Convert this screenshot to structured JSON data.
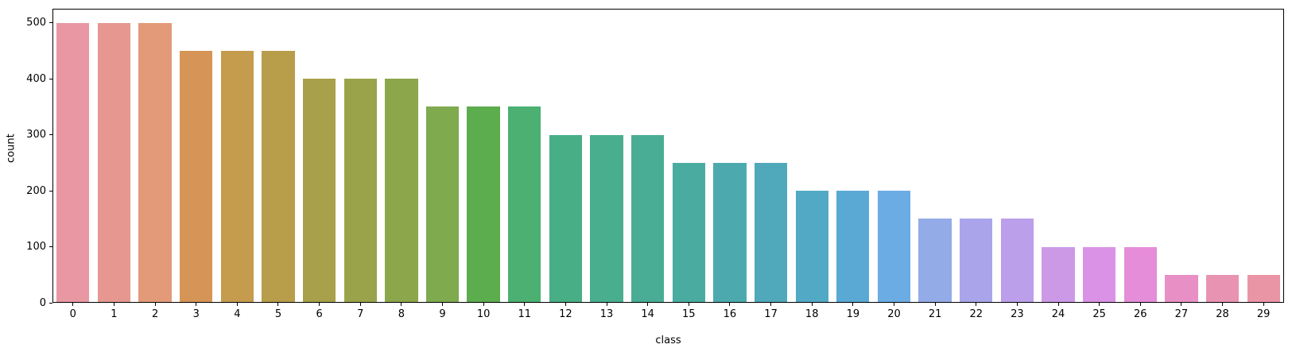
{
  "chart_data": {
    "type": "bar",
    "title": "",
    "xlabel": "class",
    "ylabel": "count",
    "categories": [
      "0",
      "1",
      "2",
      "3",
      "4",
      "5",
      "6",
      "7",
      "8",
      "9",
      "10",
      "11",
      "12",
      "13",
      "14",
      "15",
      "16",
      "17",
      "18",
      "19",
      "20",
      "21",
      "22",
      "23",
      "24",
      "25",
      "26",
      "27",
      "28",
      "29"
    ],
    "values": [
      500,
      500,
      500,
      450,
      450,
      450,
      400,
      400,
      400,
      350,
      350,
      350,
      300,
      300,
      300,
      250,
      250,
      250,
      200,
      200,
      200,
      150,
      150,
      150,
      100,
      100,
      100,
      50,
      50,
      50
    ],
    "bar_colors": [
      "#e998a3",
      "#e69890",
      "#e39a78",
      "#d69556",
      "#c59b4e",
      "#b89d4a",
      "#a8a04a",
      "#9aa34a",
      "#8ca64b",
      "#7faa4d",
      "#5cad4e",
      "#4bb071",
      "#48ae86",
      "#48ae8e",
      "#49ad96",
      "#4aaca1",
      "#4caaae",
      "#4fa9ba",
      "#52a9c6",
      "#5aa9d4",
      "#6bace4",
      "#93abe6",
      "#aaa5ea",
      "#bb9fea",
      "#cc99e7",
      "#da92e6",
      "#e58dd9",
      "#e890c5",
      "#e993b2",
      "#ea95a6"
    ],
    "ylim": [
      0,
      525
    ],
    "yticks": [
      0,
      100,
      200,
      300,
      400,
      500
    ],
    "grid": false,
    "legend": null,
    "background_color": "#ffffff",
    "spine_color": "#000000"
  }
}
